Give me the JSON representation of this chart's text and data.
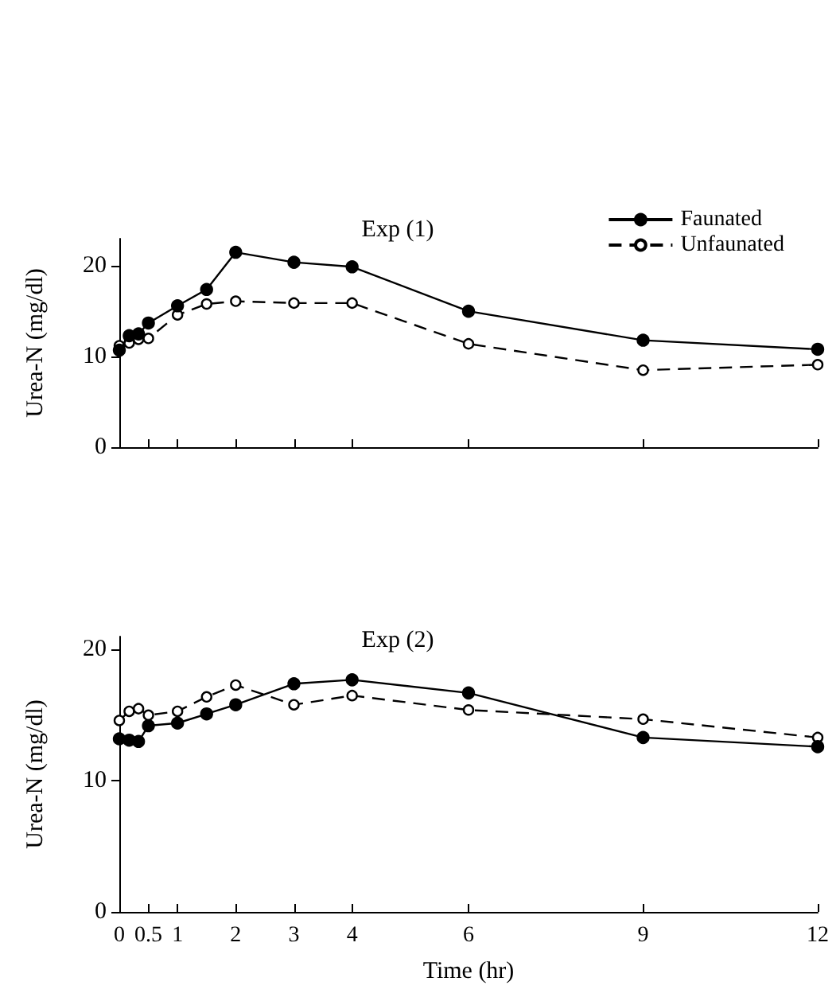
{
  "chart_data": [
    {
      "type": "line",
      "title": "Exp (1)",
      "ylabel": "Urea-N (mg/dl)",
      "x": [
        0,
        0.17,
        0.33,
        0.5,
        1,
        1.5,
        2,
        3,
        4,
        6,
        9,
        12
      ],
      "xlim": [
        0,
        12
      ],
      "xticks": [
        0,
        0.5,
        1,
        2,
        3,
        4,
        6,
        9,
        12
      ],
      "ylim": [
        0,
        23
      ],
      "yticks": [
        0,
        10,
        20
      ],
      "tick_labels": "y",
      "legend": "top right",
      "grid": false,
      "marker": "circle",
      "series": [
        {
          "name": "Faunated",
          "color": "#000000",
          "line_style": "solid",
          "values": [
            10.7,
            12.3,
            12.5,
            13.7,
            15.6,
            17.4,
            21.5,
            20.4,
            19.9,
            15.0,
            11.8,
            10.8
          ]
        },
        {
          "name": "Unfaunated",
          "color": "#000000",
          "line_style": "dashed",
          "values": [
            11.2,
            11.5,
            11.9,
            12.0,
            14.6,
            15.8,
            16.1,
            15.9,
            15.9,
            11.4,
            8.5,
            9.1
          ]
        }
      ]
    },
    {
      "type": "line",
      "title": "Exp (2)",
      "xlabel": "Time (hr)",
      "ylabel": "Urea-N (mg/dl)",
      "x": [
        0,
        0.17,
        0.33,
        0.5,
        1,
        1.5,
        2,
        3,
        4,
        6,
        9,
        12
      ],
      "xlim": [
        0,
        12
      ],
      "xticks": [
        0,
        0.5,
        1,
        2,
        3,
        4,
        6,
        9,
        12
      ],
      "ylim": [
        0,
        21
      ],
      "yticks": [
        0,
        10,
        20
      ],
      "grid": false,
      "marker": "circle",
      "series": [
        {
          "color": "#000000",
          "line_style": "solid",
          "values": [
            13.2,
            13.1,
            13.0,
            14.2,
            14.4,
            15.1,
            15.8,
            17.4,
            17.7,
            16.7,
            13.3,
            12.6
          ]
        },
        {
          "color": "#000000",
          "line_style": "dashed",
          "values": [
            14.6,
            15.3,
            15.5,
            15.0,
            15.3,
            16.4,
            17.3,
            15.8,
            16.5,
            15.4,
            14.7,
            13.3
          ]
        }
      ]
    }
  ]
}
